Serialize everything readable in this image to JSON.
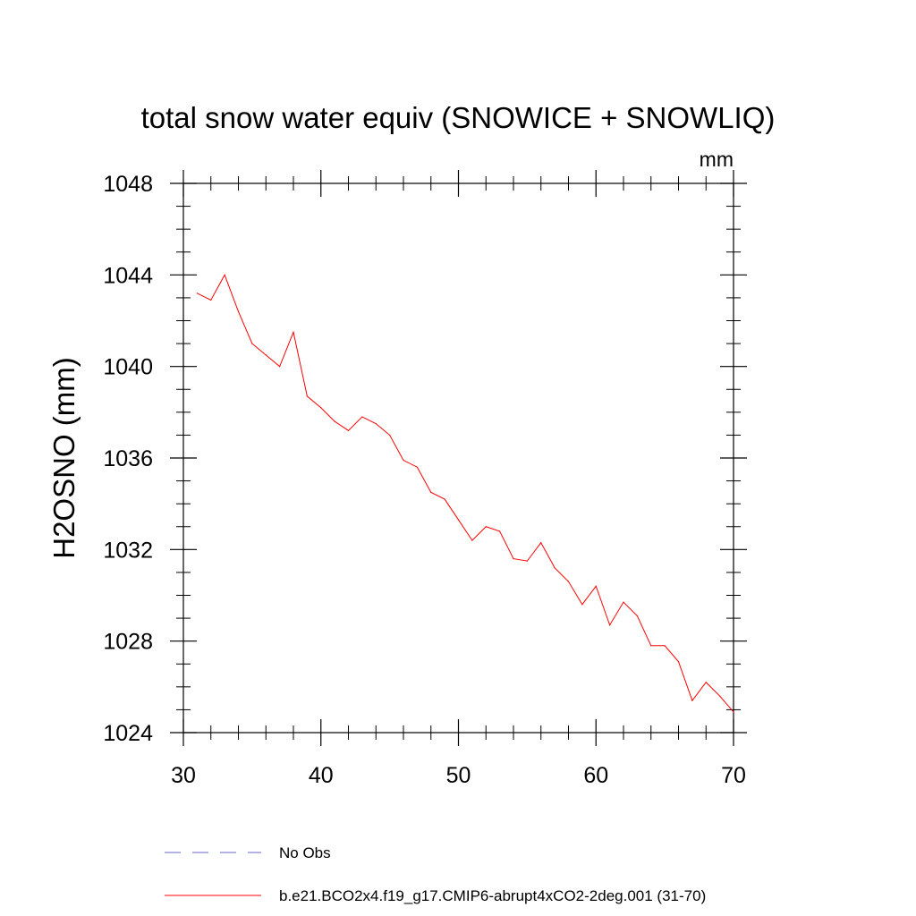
{
  "chart_data": {
    "type": "line",
    "title": "total snow water equiv (SNOWICE + SNOWLIQ)",
    "units_label": "mm",
    "xlabel": "",
    "ylabel": "H2OSNO  (mm)",
    "xlim": [
      30,
      70
    ],
    "ylim": [
      1024,
      1048
    ],
    "x_major_ticks": [
      30,
      40,
      50,
      60,
      70
    ],
    "x_minor_step": 2,
    "y_major_ticks": [
      1024,
      1028,
      1032,
      1036,
      1040,
      1044,
      1048
    ],
    "y_minor_step": 1,
    "grid": false,
    "series": [
      {
        "name": "b.e21.BCO2x4.f19_g17.CMIP6-abrupt4xCO2-2deg.001 (31-70)",
        "color": "#ff0000",
        "dash": "solid",
        "x": [
          31,
          32,
          33,
          34,
          35,
          36,
          37,
          38,
          39,
          40,
          41,
          42,
          43,
          44,
          45,
          46,
          47,
          48,
          49,
          50,
          51,
          52,
          53,
          54,
          55,
          56,
          57,
          58,
          59,
          60,
          61,
          62,
          63,
          64,
          65,
          66,
          67,
          68,
          69,
          70
        ],
        "values": [
          1043.2,
          1042.9,
          1044.0,
          1042.4,
          1041.0,
          1040.5,
          1040.0,
          1041.5,
          1038.7,
          1038.2,
          1037.6,
          1037.2,
          1037.8,
          1037.5,
          1037.0,
          1035.9,
          1035.6,
          1034.5,
          1034.2,
          1033.3,
          1032.4,
          1033.0,
          1032.8,
          1031.6,
          1031.5,
          1032.3,
          1031.2,
          1030.6,
          1029.6,
          1030.4,
          1028.7,
          1029.7,
          1029.1,
          1027.8,
          1027.8,
          1027.1,
          1025.4,
          1026.2,
          1025.6,
          1024.9
        ]
      }
    ],
    "legend": [
      {
        "label": "No Obs",
        "color": "#6666cc",
        "dash": "dashed"
      },
      {
        "label": "b.e21.BCO2x4.f19_g17.CMIP6-abrupt4xCO2-2deg.001 (31-70)",
        "color": "#ff0000",
        "dash": "solid"
      }
    ]
  }
}
